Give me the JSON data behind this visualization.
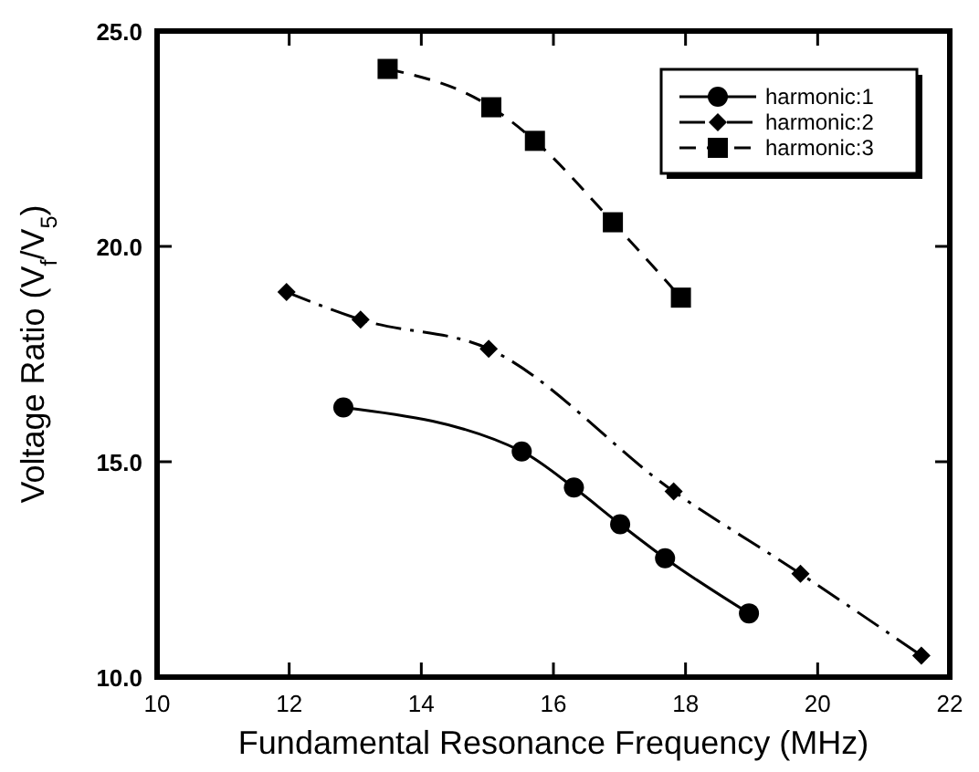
{
  "chart_data": {
    "type": "line",
    "xlabel": "Fundamental Resonance Frequency (MHz)",
    "ylabel": "Voltage Ratio (V$_{f}$/V$_{5}$)",
    "xlim": [
      10,
      22
    ],
    "xticks": [
      10,
      12,
      14,
      16,
      18,
      20,
      22
    ],
    "ylim": [
      10,
      25
    ],
    "yticks": [
      {
        "value": 10,
        "label": "10.0"
      },
      {
        "value": 15,
        "label": "15.0"
      },
      {
        "value": 20,
        "label": "20.0"
      },
      {
        "value": 25,
        "label": "25.0"
      }
    ],
    "grid": false,
    "legend": "top right",
    "series": [
      {
        "name": "harmonic:1",
        "color": "#000000",
        "marker": "circle",
        "line_style": "solid",
        "x": [
          12.82,
          15.52,
          16.31,
          17.01,
          17.69,
          18.96
        ],
        "values": [
          16.26,
          15.24,
          14.4,
          13.55,
          12.76,
          11.48
        ]
      },
      {
        "name": "harmonic:2",
        "color": "#000000",
        "marker": "diamond",
        "line_style": "dashdot",
        "x": [
          11.96,
          13.08,
          15.02,
          17.82,
          19.74,
          21.57
        ],
        "values": [
          18.94,
          18.3,
          17.62,
          14.31,
          12.4,
          10.5
        ]
      },
      {
        "name": "harmonic:3",
        "color": "#000000",
        "marker": "square",
        "line_style": "dashed",
        "x": [
          13.49,
          15.06,
          15.72,
          16.9,
          17.93
        ],
        "values": [
          24.12,
          23.23,
          22.45,
          20.56,
          18.81
        ]
      }
    ]
  }
}
